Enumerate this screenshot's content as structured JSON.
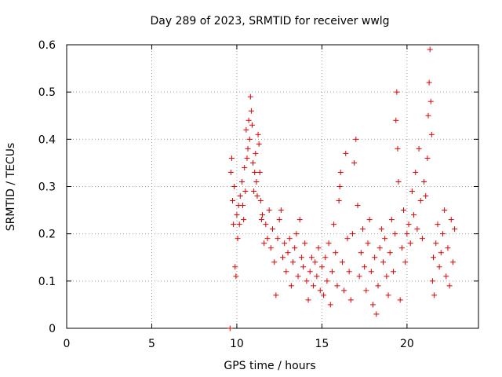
{
  "chart_data": {
    "type": "scatter",
    "title": "Day 289 of 2023, SRMTID for receiver wwlg",
    "xlabel": "GPS time / hours",
    "ylabel": "SRMTID / TECUs",
    "xlim": [
      0,
      24.2
    ],
    "ylim": [
      0,
      0.6
    ],
    "xticks": [
      0,
      5,
      10,
      15,
      20
    ],
    "yticks": [
      0,
      0.1,
      0.2,
      0.3,
      0.4,
      0.5,
      0.6
    ],
    "xtick_labels": [
      "0",
      "5",
      "10",
      "15",
      "20"
    ],
    "ytick_labels": [
      "0",
      "0.1",
      "0.2",
      "0.3",
      "0.4",
      "0.5",
      "0.6"
    ],
    "grid": true,
    "marker": "+",
    "color": "#e00000",
    "series": [
      {
        "name": "SRMTID",
        "points": [
          [
            9.6,
            0.0
          ],
          [
            9.65,
            0.33
          ],
          [
            9.7,
            0.36
          ],
          [
            9.75,
            0.27
          ],
          [
            9.8,
            0.22
          ],
          [
            9.85,
            0.3
          ],
          [
            9.9,
            0.13
          ],
          [
            9.95,
            0.11
          ],
          [
            10.0,
            0.24
          ],
          [
            10.05,
            0.19
          ],
          [
            10.1,
            0.26
          ],
          [
            10.15,
            0.22
          ],
          [
            10.2,
            0.28
          ],
          [
            10.3,
            0.31
          ],
          [
            10.35,
            0.26
          ],
          [
            10.4,
            0.23
          ],
          [
            10.45,
            0.34
          ],
          [
            10.5,
            0.29
          ],
          [
            10.55,
            0.42
          ],
          [
            10.6,
            0.36
          ],
          [
            10.65,
            0.38
          ],
          [
            10.7,
            0.44
          ],
          [
            10.75,
            0.4
          ],
          [
            10.8,
            0.49
          ],
          [
            10.85,
            0.46
          ],
          [
            10.9,
            0.43
          ],
          [
            10.95,
            0.35
          ],
          [
            11.0,
            0.29
          ],
          [
            11.05,
            0.33
          ],
          [
            11.1,
            0.37
          ],
          [
            11.15,
            0.31
          ],
          [
            11.2,
            0.28
          ],
          [
            11.25,
            0.41
          ],
          [
            11.3,
            0.39
          ],
          [
            11.35,
            0.33
          ],
          [
            11.4,
            0.27
          ],
          [
            11.45,
            0.23
          ],
          [
            11.5,
            0.24
          ],
          [
            11.6,
            0.18
          ],
          [
            11.7,
            0.22
          ],
          [
            11.8,
            0.19
          ],
          [
            11.9,
            0.25
          ],
          [
            12.0,
            0.17
          ],
          [
            12.1,
            0.21
          ],
          [
            12.2,
            0.14
          ],
          [
            12.3,
            0.07
          ],
          [
            12.4,
            0.19
          ],
          [
            12.5,
            0.23
          ],
          [
            12.6,
            0.25
          ],
          [
            12.7,
            0.15
          ],
          [
            12.8,
            0.18
          ],
          [
            12.9,
            0.12
          ],
          [
            13.0,
            0.16
          ],
          [
            13.1,
            0.19
          ],
          [
            13.2,
            0.09
          ],
          [
            13.3,
            0.14
          ],
          [
            13.4,
            0.17
          ],
          [
            13.5,
            0.2
          ],
          [
            13.6,
            0.11
          ],
          [
            13.7,
            0.23
          ],
          [
            13.8,
            0.15
          ],
          [
            13.9,
            0.13
          ],
          [
            14.0,
            0.18
          ],
          [
            14.1,
            0.1
          ],
          [
            14.2,
            0.06
          ],
          [
            14.3,
            0.12
          ],
          [
            14.4,
            0.15
          ],
          [
            14.5,
            0.09
          ],
          [
            14.6,
            0.14
          ],
          [
            14.7,
            0.11
          ],
          [
            14.8,
            0.17
          ],
          [
            14.9,
            0.08
          ],
          [
            15.0,
            0.13
          ],
          [
            15.1,
            0.07
          ],
          [
            15.2,
            0.15
          ],
          [
            15.3,
            0.1
          ],
          [
            15.4,
            0.18
          ],
          [
            15.5,
            0.05
          ],
          [
            15.6,
            0.12
          ],
          [
            15.7,
            0.22
          ],
          [
            15.8,
            0.16
          ],
          [
            15.9,
            0.09
          ],
          [
            16.0,
            0.27
          ],
          [
            16.05,
            0.3
          ],
          [
            16.1,
            0.33
          ],
          [
            16.2,
            0.14
          ],
          [
            16.3,
            0.08
          ],
          [
            16.4,
            0.37
          ],
          [
            16.5,
            0.19
          ],
          [
            16.6,
            0.12
          ],
          [
            16.7,
            0.06
          ],
          [
            16.8,
            0.2
          ],
          [
            16.9,
            0.35
          ],
          [
            17.0,
            0.4
          ],
          [
            17.1,
            0.26
          ],
          [
            17.2,
            0.11
          ],
          [
            17.3,
            0.16
          ],
          [
            17.4,
            0.21
          ],
          [
            17.5,
            0.13
          ],
          [
            17.6,
            0.08
          ],
          [
            17.7,
            0.18
          ],
          [
            17.8,
            0.23
          ],
          [
            17.9,
            0.12
          ],
          [
            18.0,
            0.05
          ],
          [
            18.1,
            0.15
          ],
          [
            18.2,
            0.03
          ],
          [
            18.3,
            0.09
          ],
          [
            18.4,
            0.17
          ],
          [
            18.5,
            0.21
          ],
          [
            18.6,
            0.14
          ],
          [
            18.7,
            0.19
          ],
          [
            18.8,
            0.11
          ],
          [
            18.9,
            0.07
          ],
          [
            19.0,
            0.16
          ],
          [
            19.1,
            0.23
          ],
          [
            19.2,
            0.12
          ],
          [
            19.3,
            0.2
          ],
          [
            19.35,
            0.44
          ],
          [
            19.4,
            0.5
          ],
          [
            19.45,
            0.38
          ],
          [
            19.5,
            0.31
          ],
          [
            19.6,
            0.06
          ],
          [
            19.7,
            0.17
          ],
          [
            19.8,
            0.25
          ],
          [
            19.9,
            0.14
          ],
          [
            20.0,
            0.2
          ],
          [
            20.1,
            0.22
          ],
          [
            20.2,
            0.18
          ],
          [
            20.3,
            0.29
          ],
          [
            20.4,
            0.24
          ],
          [
            20.5,
            0.33
          ],
          [
            20.6,
            0.21
          ],
          [
            20.7,
            0.38
          ],
          [
            20.8,
            0.27
          ],
          [
            20.9,
            0.19
          ],
          [
            21.0,
            0.31
          ],
          [
            21.1,
            0.28
          ],
          [
            21.2,
            0.36
          ],
          [
            21.25,
            0.45
          ],
          [
            21.3,
            0.52
          ],
          [
            21.35,
            0.59
          ],
          [
            21.4,
            0.48
          ],
          [
            21.45,
            0.41
          ],
          [
            21.5,
            0.1
          ],
          [
            21.55,
            0.15
          ],
          [
            21.6,
            0.07
          ],
          [
            21.7,
            0.18
          ],
          [
            21.8,
            0.22
          ],
          [
            21.9,
            0.13
          ],
          [
            22.0,
            0.16
          ],
          [
            22.1,
            0.2
          ],
          [
            22.2,
            0.25
          ],
          [
            22.3,
            0.11
          ],
          [
            22.4,
            0.17
          ],
          [
            22.5,
            0.09
          ],
          [
            22.6,
            0.23
          ],
          [
            22.7,
            0.14
          ],
          [
            22.8,
            0.21
          ]
        ]
      }
    ]
  }
}
